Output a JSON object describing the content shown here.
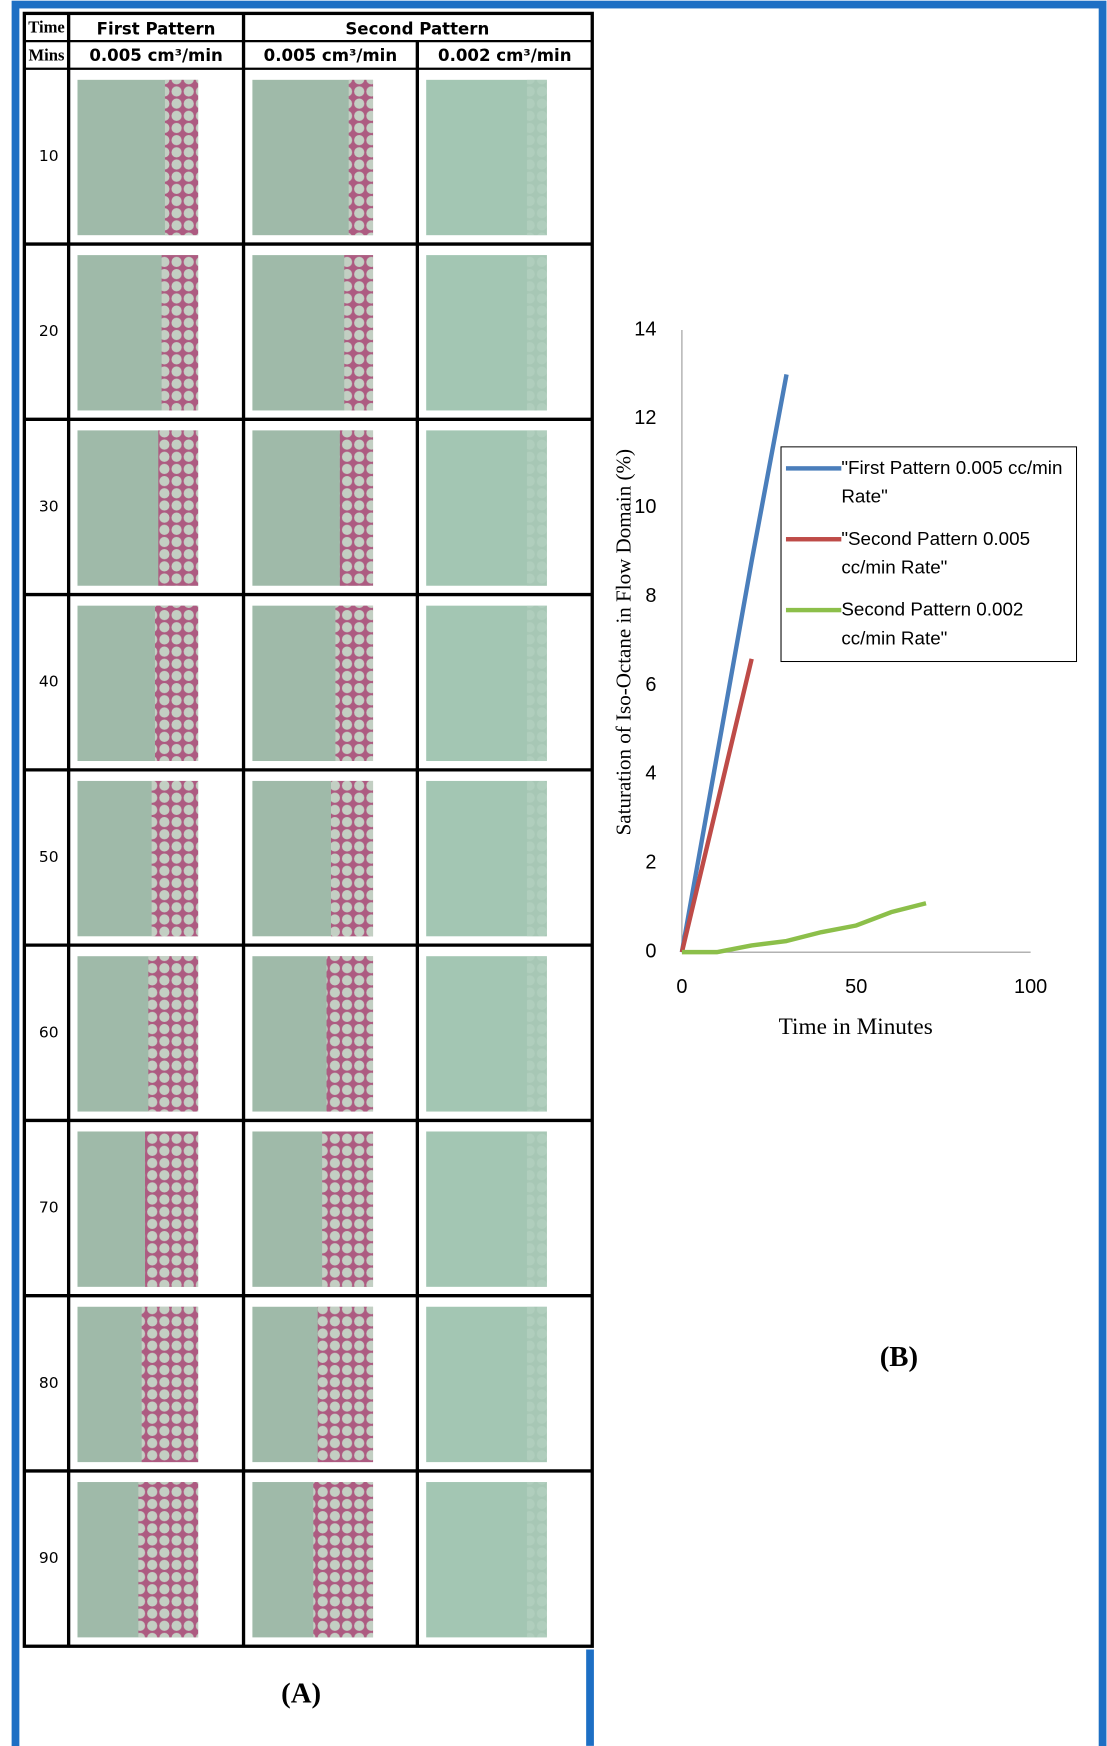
{
  "figure_a": {
    "label": "(A)",
    "table": {
      "header_top": [
        "Time",
        "First Pattern",
        "Second Pattern"
      ],
      "header_sub": [
        "Mins",
        "0.005 cm³/min",
        "0.005 cm³/min",
        "0.002 cm³/min"
      ],
      "rows": [
        10,
        20,
        30,
        40,
        50,
        60,
        70,
        80,
        90
      ]
    }
  },
  "figure_b": {
    "label": "(B)"
  },
  "chart_data": {
    "type": "line",
    "x_label": "Time in Minutes",
    "y_label": "Saturation of  Iso-Octane in Flow Domain (%)",
    "xlim": [
      0,
      100
    ],
    "xticks": [
      0,
      50,
      100
    ],
    "ylim": [
      0,
      14
    ],
    "yticks": [
      0,
      2,
      4,
      6,
      8,
      10,
      12,
      14
    ],
    "grid": false,
    "legend": "right",
    "series": [
      {
        "name": "\"First Pattern 0.005 cc/min Rate\"",
        "color": "#4a7ebb",
        "x": [
          0,
          10,
          20,
          30
        ],
        "values": [
          0,
          4.4,
          8.8,
          13
        ]
      },
      {
        "name": "\"Second Pattern 0.005 cc/min Rate\"",
        "color": "#be4b48",
        "x": [
          0,
          10,
          20
        ],
        "values": [
          0,
          3.3,
          6.6
        ]
      },
      {
        "name": "Second Pattern 0.002 cc/min Rate\"",
        "color": "#8cbf4a",
        "x": [
          0,
          10,
          20,
          30,
          40,
          50,
          60,
          70
        ],
        "values": [
          0,
          0,
          0.15,
          0.25,
          0.45,
          0.6,
          0.9,
          1.1
        ]
      }
    ]
  }
}
